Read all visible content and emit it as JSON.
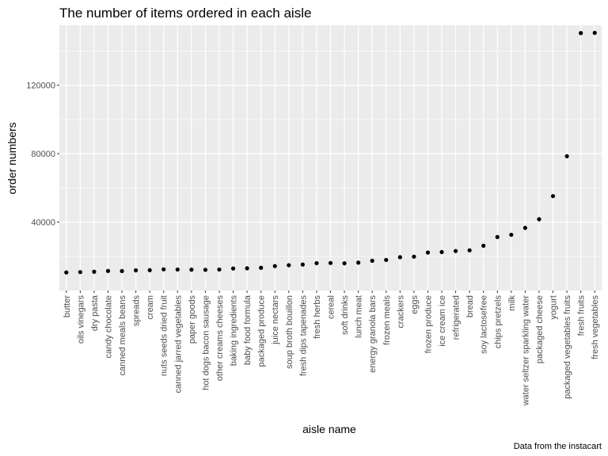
{
  "chart_data": {
    "type": "scatter",
    "title": "The number of items ordered in each aisle",
    "xlabel": "aisle name",
    "ylabel": "order numbers",
    "caption": "Data from the instacart",
    "ylim": [
      0,
      155000
    ],
    "yticks": [
      40000,
      80000,
      120000
    ],
    "ytick_labels": [
      "40000",
      "80000",
      "120000"
    ],
    "grid": true,
    "point_color": "#000000",
    "panel_background": "#ebebeb",
    "categories": [
      "butter",
      "oils vinegars",
      "dry pasta",
      "candy chocolate",
      "canned meals beans",
      "spreads",
      "cream",
      "nuts seeds dried fruit",
      "canned jarred vegetables",
      "paper goods",
      "hot dogs bacon sausage",
      "other creams cheeses",
      "baking ingredients",
      "baby food formula",
      "packaged produce",
      "juice nectars",
      "soup broth bouillon",
      "fresh dips tapenades",
      "fresh herbs",
      "cereal",
      "soft drinks",
      "lunch meat",
      "energy granola bars",
      "frozen meals",
      "crackers",
      "eggs",
      "frozen produce",
      "ice cream ice",
      "refrigerated",
      "bread",
      "soy lactosefree",
      "chips pretzels",
      "milk",
      "water seltzer sparkling water",
      "packaged cheese",
      "yogurt",
      "packaged vegetables fruits",
      "fresh fruits",
      "fresh vegetables"
    ],
    "values": [
      10575,
      10780,
      11000,
      11450,
      11400,
      11800,
      11900,
      12400,
      12300,
      12200,
      12100,
      12300,
      12900,
      13000,
      13300,
      14300,
      14800,
      15200,
      16000,
      16100,
      15900,
      16300,
      17400,
      17900,
      19500,
      19800,
      22200,
      22500,
      23100,
      23500,
      26200,
      31300,
      32600,
      36600,
      41700,
      55200,
      78500,
      150500,
      150600
    ]
  }
}
